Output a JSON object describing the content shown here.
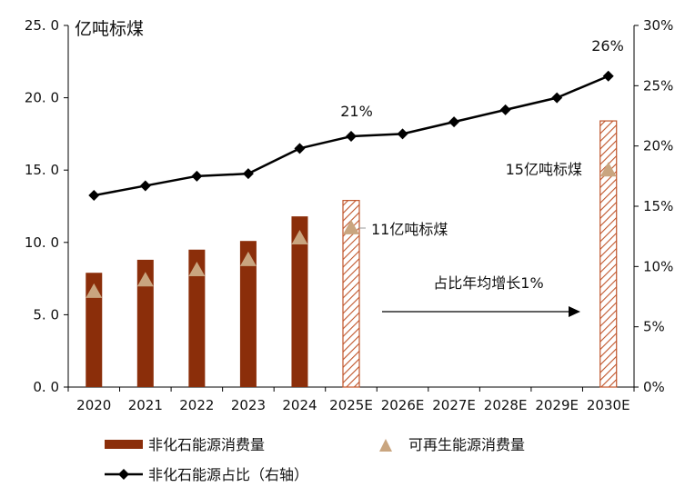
{
  "chart_data": {
    "type": "bar+line",
    "unit_label": "亿吨标煤",
    "categories": [
      "2020",
      "2021",
      "2022",
      "2023",
      "2024",
      "2025E",
      "2026E",
      "2027E",
      "2028E",
      "2029E",
      "2030E"
    ],
    "series": [
      {
        "name": "非化石能源消费量",
        "type": "bar",
        "axis": "left",
        "values": [
          7.9,
          8.8,
          9.5,
          10.1,
          11.8,
          12.9,
          null,
          null,
          null,
          null,
          18.4
        ],
        "forecast": [
          false,
          false,
          false,
          false,
          false,
          true,
          false,
          false,
          false,
          false,
          true
        ]
      },
      {
        "name": "可再生能源消费量",
        "type": "scatter",
        "marker": "triangle",
        "axis": "left",
        "values": [
          6.6,
          7.4,
          8.1,
          8.8,
          10.3,
          11.0,
          null,
          null,
          null,
          null,
          15.0
        ]
      },
      {
        "name": "非化石能源占比（右轴）",
        "type": "line",
        "marker": "diamond",
        "axis": "right",
        "values": [
          15.9,
          16.7,
          17.5,
          17.7,
          19.8,
          20.8,
          21.0,
          22.0,
          23.0,
          24.0,
          25.8
        ]
      }
    ],
    "left_axis": {
      "min": 0,
      "max": 25,
      "step": 5,
      "tick_labels": [
        "0. 0",
        "5. 0",
        "10. 0",
        "15. 0",
        "20. 0",
        "25. 0"
      ]
    },
    "right_axis": {
      "min": 0,
      "max": 30,
      "step": 5,
      "tick_labels": [
        "0%",
        "5%",
        "10%",
        "15%",
        "20%",
        "25%",
        "30%"
      ]
    },
    "annotations": {
      "pct_2025": "21%",
      "pct_2030": "26%",
      "renew_2025": "11亿吨标煤",
      "renew_2030": "15亿吨标煤",
      "growth": "占比年均增长1%"
    },
    "colors": {
      "bar": "#8B2E0A",
      "triangle": "#C9A57F",
      "line": "#000000"
    },
    "legend": [
      {
        "label": "非化石能源消费量",
        "type": "bar"
      },
      {
        "label": "可再生能源消费量",
        "type": "triangle"
      },
      {
        "label": "非化石能源占比（右轴）",
        "type": "line"
      }
    ]
  }
}
